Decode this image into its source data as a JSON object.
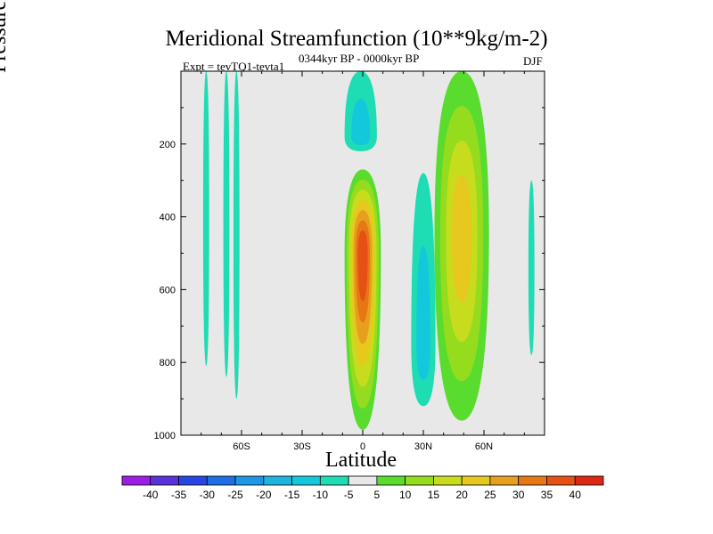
{
  "chart_data": {
    "type": "heatmap",
    "title": "Meridional Streamfunction (10**9kg/m-2)",
    "subtitle_left": "Expt = tevTQ1-tevta1",
    "subtitle_center": "0344kyr BP - 0000kyr BP",
    "subtitle_right": "DJF",
    "xlabel": "Latitude",
    "ylabel": "Pressure (in hPa)",
    "xlim": [
      -90,
      90
    ],
    "ylim": [
      1000,
      0
    ],
    "xticks": [
      {
        "value": -60,
        "label": "60S"
      },
      {
        "value": -30,
        "label": "30S"
      },
      {
        "value": 0,
        "label": "0"
      },
      {
        "value": 30,
        "label": "30N"
      },
      {
        "value": 60,
        "label": "60N"
      }
    ],
    "yticks": [
      {
        "value": 200,
        "label": "200"
      },
      {
        "value": 400,
        "label": "400"
      },
      {
        "value": 600,
        "label": "600"
      },
      {
        "value": 800,
        "label": "800"
      },
      {
        "value": 1000,
        "label": "1000"
      }
    ],
    "missing_color": "#e8e8e8",
    "colorbar": {
      "levels": [
        -40,
        -35,
        -30,
        -25,
        -20,
        -15,
        -10,
        -5,
        5,
        10,
        15,
        20,
        25,
        30,
        35,
        40
      ],
      "level_labels": [
        "-40",
        "-35",
        "-30",
        "-25",
        "-20",
        "-15",
        "-10",
        "-5",
        "5",
        "10",
        "15",
        "20",
        "25",
        "30",
        "35",
        "40"
      ],
      "colors": [
        "#9c1ee6",
        "#5a32dc",
        "#2846e6",
        "#1e6ee6",
        "#1e96e6",
        "#1eb4e0",
        "#14c8dc",
        "#1edcb4",
        "#e8e8e8",
        "#5adc2e",
        "#96dc1e",
        "#c8dc1e",
        "#e6c81e",
        "#e6a01e",
        "#e67814",
        "#e65014",
        "#dc2814"
      ]
    },
    "features": [
      {
        "name": "hadley-cell-core",
        "sign": "positive",
        "lat_range": [
          -9,
          9
        ],
        "pressure_range": [
          270,
          985
        ],
        "max_value": 35,
        "center_lat": 0,
        "center_pressure": 500
      },
      {
        "name": "tropical-upper-negative",
        "sign": "negative",
        "lat_range": [
          -6,
          10
        ],
        "pressure_range": [
          0,
          220
        ],
        "min_value": -10,
        "center_lat": -1,
        "center_pressure": 180
      },
      {
        "name": "northern-ferrel-positive",
        "sign": "positive",
        "lat_range": [
          44,
          71
        ],
        "pressure_range": [
          0,
          960
        ],
        "max_value": 20,
        "center_lat": 49,
        "center_pressure": 450
      },
      {
        "name": "northern-subtropic-negative",
        "sign": "negative",
        "lat_range": [
          25,
          37
        ],
        "pressure_range": [
          280,
          920
        ],
        "min_value": -10,
        "center_lat": 30,
        "center_pressure": 750
      },
      {
        "name": "southern-weak-negative-1",
        "sign": "negative",
        "lat_range": [
          -79,
          -76
        ],
        "pressure_range": [
          0,
          810
        ],
        "min_value": -5
      },
      {
        "name": "southern-weak-negative-2",
        "sign": "negative",
        "lat_range": [
          -69,
          -66
        ],
        "pressure_range": [
          0,
          840
        ],
        "min_value": -5
      },
      {
        "name": "southern-weak-negative-3",
        "sign": "negative",
        "lat_range": [
          -64,
          -61
        ],
        "pressure_range": [
          0,
          900
        ],
        "min_value": -5
      },
      {
        "name": "northern-polar-negative",
        "sign": "negative",
        "lat_range": [
          82,
          85
        ],
        "pressure_range": [
          300,
          780
        ],
        "min_value": -5
      }
    ]
  }
}
